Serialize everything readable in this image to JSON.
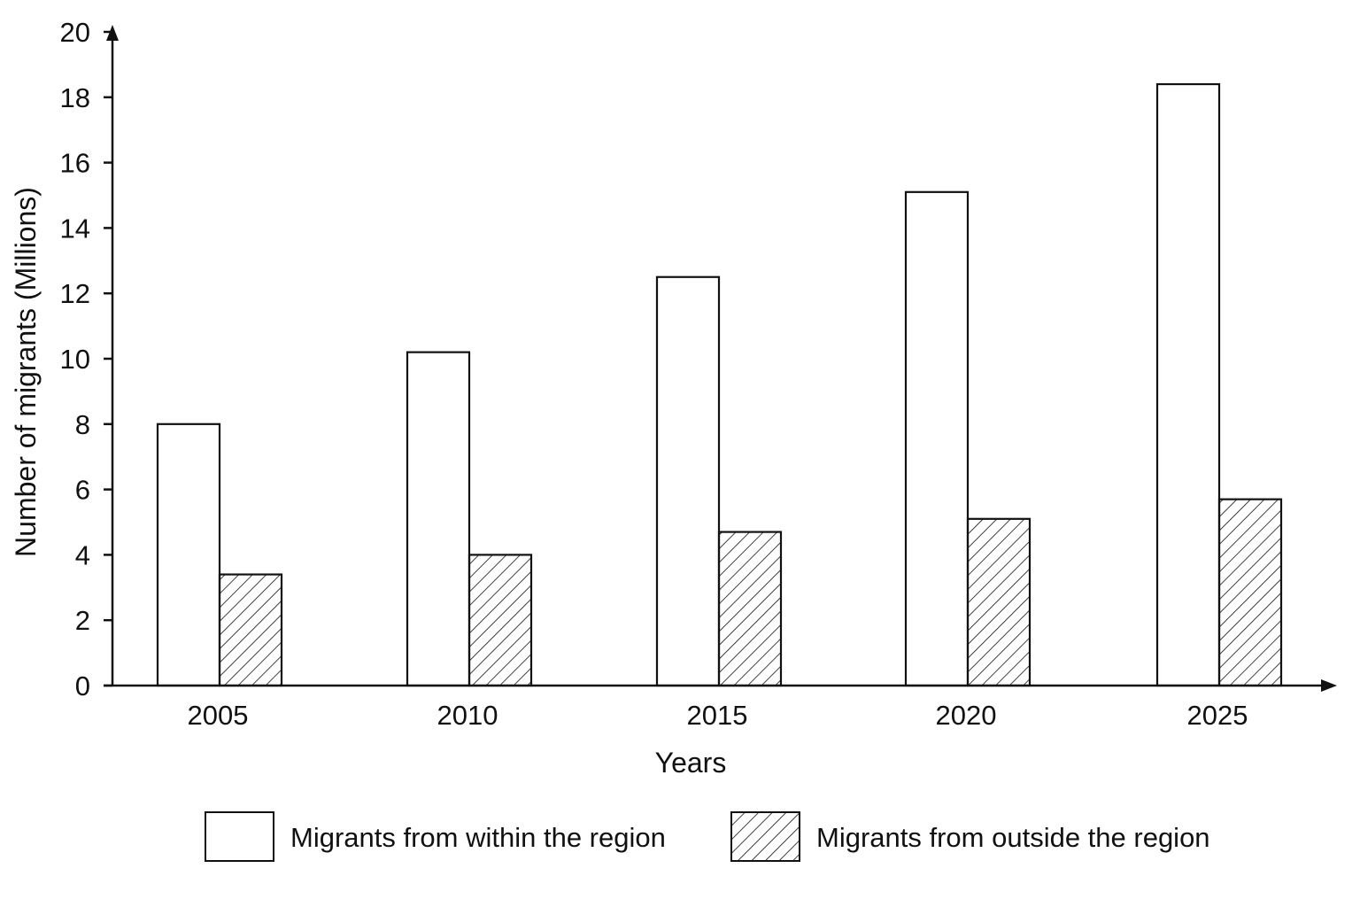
{
  "chart_data": {
    "type": "bar",
    "title": "",
    "xlabel": "Years",
    "ylabel": "Number of migrants (Millions)",
    "categories": [
      "2005",
      "2010",
      "2015",
      "2020",
      "2025"
    ],
    "series": [
      {
        "name": "Migrants from within the region",
        "values": [
          8.0,
          10.2,
          12.5,
          15.1,
          18.4
        ],
        "fill": "none"
      },
      {
        "name": "Migrants from outside the region",
        "values": [
          3.4,
          4.0,
          4.7,
          5.1,
          5.7
        ],
        "fill": "hatched"
      }
    ],
    "ylim": [
      0,
      20
    ],
    "yticks": [
      0,
      2,
      4,
      6,
      8,
      10,
      12,
      14,
      16,
      18,
      20
    ],
    "grid": false,
    "legend_position": "bottom",
    "colors": {
      "stroke": "#111111",
      "background": "#ffffff"
    }
  }
}
